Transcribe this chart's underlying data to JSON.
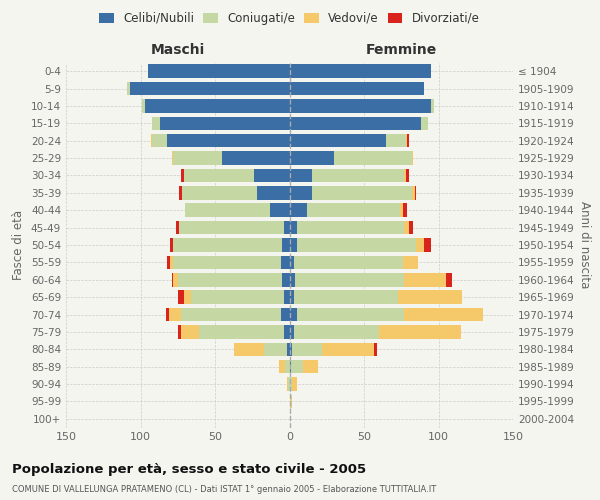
{
  "age_groups": [
    "0-4",
    "5-9",
    "10-14",
    "15-19",
    "20-24",
    "25-29",
    "30-34",
    "35-39",
    "40-44",
    "45-49",
    "50-54",
    "55-59",
    "60-64",
    "65-69",
    "70-74",
    "75-79",
    "80-84",
    "85-89",
    "90-94",
    "95-99",
    "100+"
  ],
  "birth_years": [
    "2000-2004",
    "1995-1999",
    "1990-1994",
    "1985-1989",
    "1980-1984",
    "1975-1979",
    "1970-1974",
    "1965-1969",
    "1960-1964",
    "1955-1959",
    "1950-1954",
    "1945-1949",
    "1940-1944",
    "1935-1939",
    "1930-1934",
    "1925-1929",
    "1920-1924",
    "1915-1919",
    "1910-1914",
    "1905-1909",
    "≤ 1904"
  ],
  "colors": {
    "celibi": "#3a6ea5",
    "coniugati": "#c5d8a4",
    "vedovi": "#f5c96a",
    "divorziati": "#d9231d"
  },
  "maschi": {
    "celibi": [
      95,
      107,
      97,
      87,
      82,
      45,
      24,
      22,
      13,
      4,
      5,
      6,
      5,
      4,
      6,
      4,
      2,
      0,
      0,
      0,
      0
    ],
    "coniugati": [
      0,
      2,
      2,
      5,
      10,
      33,
      47,
      50,
      57,
      70,
      73,
      72,
      70,
      62,
      67,
      57,
      15,
      3,
      1,
      0,
      0
    ],
    "vedovi": [
      0,
      0,
      0,
      0,
      1,
      1,
      0,
      0,
      0,
      0,
      0,
      2,
      3,
      5,
      8,
      12,
      20,
      4,
      1,
      0,
      0
    ],
    "divorziati": [
      0,
      0,
      0,
      0,
      0,
      0,
      2,
      2,
      0,
      2,
      2,
      2,
      1,
      4,
      2,
      2,
      0,
      0,
      0,
      0,
      0
    ]
  },
  "femmine": {
    "celibi": [
      95,
      90,
      95,
      88,
      65,
      30,
      15,
      15,
      12,
      5,
      5,
      3,
      4,
      3,
      5,
      3,
      2,
      1,
      0,
      0,
      0
    ],
    "coniugati": [
      0,
      0,
      2,
      5,
      13,
      52,
      62,
      67,
      62,
      72,
      80,
      73,
      73,
      70,
      72,
      57,
      20,
      8,
      2,
      1,
      0
    ],
    "vedovi": [
      0,
      0,
      0,
      0,
      1,
      1,
      1,
      2,
      2,
      3,
      5,
      10,
      28,
      43,
      53,
      55,
      35,
      10,
      3,
      1,
      0
    ],
    "divorziati": [
      0,
      0,
      0,
      0,
      1,
      0,
      2,
      1,
      3,
      3,
      5,
      0,
      4,
      0,
      0,
      0,
      2,
      0,
      0,
      0,
      0
    ]
  },
  "xlim": 150,
  "title": "Popolazione per età, sesso e stato civile - 2005",
  "subtitle": "COMUNE DI VALLELUNGA PRATAMENO (CL) - Dati ISTAT 1° gennaio 2005 - Elaborazione TUTTITALIA.IT",
  "ylabel_left": "Fasce di età",
  "ylabel_right": "Anni di nascita",
  "xlabel_maschi": "Maschi",
  "xlabel_femmine": "Femmine",
  "background_color": "#f5f5f0",
  "grid_color": "#cccccc",
  "legend_labels": [
    "Celibi/Nubili",
    "Coniugati/e",
    "Vedovi/e",
    "Divorziati/e"
  ]
}
